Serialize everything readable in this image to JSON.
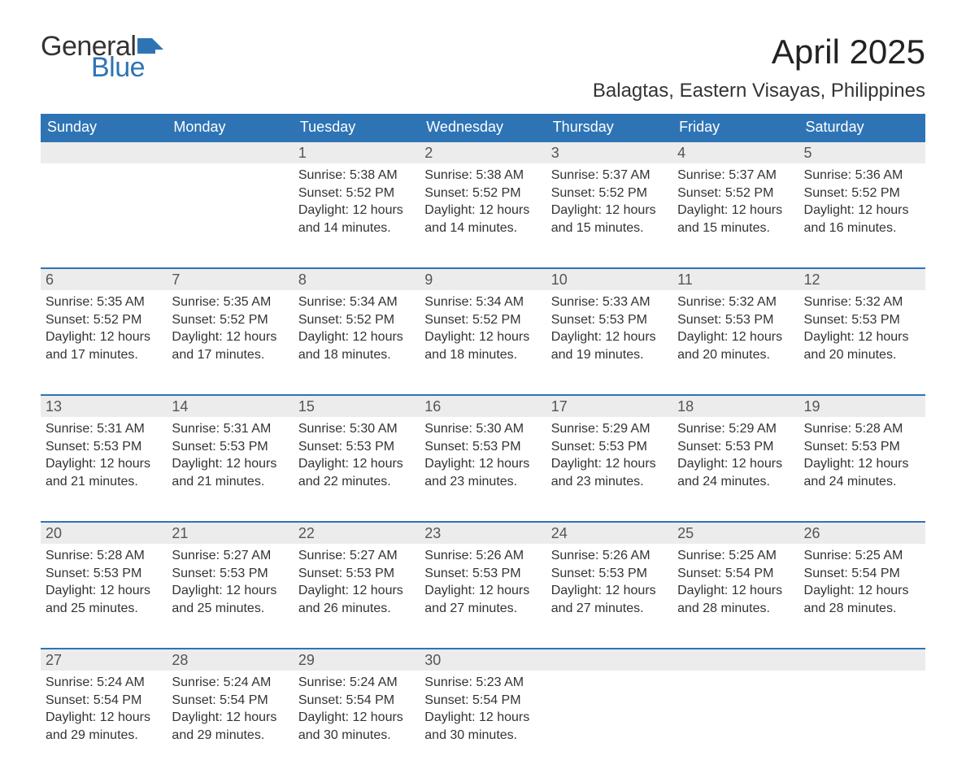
{
  "logo": {
    "text_general": "General",
    "text_blue": "Blue",
    "flag_color": "#2e74b5"
  },
  "title": {
    "month_year": "April 2025",
    "location": "Balagtas, Eastern Visayas, Philippines"
  },
  "colors": {
    "header_bg": "#2e74b5",
    "header_text": "#ffffff",
    "daynum_bg": "#ececec",
    "daynum_text": "#555555",
    "body_text": "#333333",
    "row_border": "#2e74b5",
    "page_bg": "#ffffff"
  },
  "typography": {
    "month_title_fontsize": 42,
    "location_fontsize": 24,
    "weekday_fontsize": 18,
    "daynum_fontsize": 18,
    "content_fontsize": 16,
    "font_family": "Arial"
  },
  "layout": {
    "columns": 7,
    "rows": 5,
    "first_day_column_index": 2,
    "days_in_month": 30
  },
  "weekdays": [
    "Sunday",
    "Monday",
    "Tuesday",
    "Wednesday",
    "Thursday",
    "Friday",
    "Saturday"
  ],
  "days": [
    {
      "n": 1,
      "sunrise": "5:38 AM",
      "sunset": "5:52 PM",
      "daylight": "12 hours and 14 minutes."
    },
    {
      "n": 2,
      "sunrise": "5:38 AM",
      "sunset": "5:52 PM",
      "daylight": "12 hours and 14 minutes."
    },
    {
      "n": 3,
      "sunrise": "5:37 AM",
      "sunset": "5:52 PM",
      "daylight": "12 hours and 15 minutes."
    },
    {
      "n": 4,
      "sunrise": "5:37 AM",
      "sunset": "5:52 PM",
      "daylight": "12 hours and 15 minutes."
    },
    {
      "n": 5,
      "sunrise": "5:36 AM",
      "sunset": "5:52 PM",
      "daylight": "12 hours and 16 minutes."
    },
    {
      "n": 6,
      "sunrise": "5:35 AM",
      "sunset": "5:52 PM",
      "daylight": "12 hours and 17 minutes."
    },
    {
      "n": 7,
      "sunrise": "5:35 AM",
      "sunset": "5:52 PM",
      "daylight": "12 hours and 17 minutes."
    },
    {
      "n": 8,
      "sunrise": "5:34 AM",
      "sunset": "5:52 PM",
      "daylight": "12 hours and 18 minutes."
    },
    {
      "n": 9,
      "sunrise": "5:34 AM",
      "sunset": "5:52 PM",
      "daylight": "12 hours and 18 minutes."
    },
    {
      "n": 10,
      "sunrise": "5:33 AM",
      "sunset": "5:53 PM",
      "daylight": "12 hours and 19 minutes."
    },
    {
      "n": 11,
      "sunrise": "5:32 AM",
      "sunset": "5:53 PM",
      "daylight": "12 hours and 20 minutes."
    },
    {
      "n": 12,
      "sunrise": "5:32 AM",
      "sunset": "5:53 PM",
      "daylight": "12 hours and 20 minutes."
    },
    {
      "n": 13,
      "sunrise": "5:31 AM",
      "sunset": "5:53 PM",
      "daylight": "12 hours and 21 minutes."
    },
    {
      "n": 14,
      "sunrise": "5:31 AM",
      "sunset": "5:53 PM",
      "daylight": "12 hours and 21 minutes."
    },
    {
      "n": 15,
      "sunrise": "5:30 AM",
      "sunset": "5:53 PM",
      "daylight": "12 hours and 22 minutes."
    },
    {
      "n": 16,
      "sunrise": "5:30 AM",
      "sunset": "5:53 PM",
      "daylight": "12 hours and 23 minutes."
    },
    {
      "n": 17,
      "sunrise": "5:29 AM",
      "sunset": "5:53 PM",
      "daylight": "12 hours and 23 minutes."
    },
    {
      "n": 18,
      "sunrise": "5:29 AM",
      "sunset": "5:53 PM",
      "daylight": "12 hours and 24 minutes."
    },
    {
      "n": 19,
      "sunrise": "5:28 AM",
      "sunset": "5:53 PM",
      "daylight": "12 hours and 24 minutes."
    },
    {
      "n": 20,
      "sunrise": "5:28 AM",
      "sunset": "5:53 PM",
      "daylight": "12 hours and 25 minutes."
    },
    {
      "n": 21,
      "sunrise": "5:27 AM",
      "sunset": "5:53 PM",
      "daylight": "12 hours and 25 minutes."
    },
    {
      "n": 22,
      "sunrise": "5:27 AM",
      "sunset": "5:53 PM",
      "daylight": "12 hours and 26 minutes."
    },
    {
      "n": 23,
      "sunrise": "5:26 AM",
      "sunset": "5:53 PM",
      "daylight": "12 hours and 27 minutes."
    },
    {
      "n": 24,
      "sunrise": "5:26 AM",
      "sunset": "5:53 PM",
      "daylight": "12 hours and 27 minutes."
    },
    {
      "n": 25,
      "sunrise": "5:25 AM",
      "sunset": "5:54 PM",
      "daylight": "12 hours and 28 minutes."
    },
    {
      "n": 26,
      "sunrise": "5:25 AM",
      "sunset": "5:54 PM",
      "daylight": "12 hours and 28 minutes."
    },
    {
      "n": 27,
      "sunrise": "5:24 AM",
      "sunset": "5:54 PM",
      "daylight": "12 hours and 29 minutes."
    },
    {
      "n": 28,
      "sunrise": "5:24 AM",
      "sunset": "5:54 PM",
      "daylight": "12 hours and 29 minutes."
    },
    {
      "n": 29,
      "sunrise": "5:24 AM",
      "sunset": "5:54 PM",
      "daylight": "12 hours and 30 minutes."
    },
    {
      "n": 30,
      "sunrise": "5:23 AM",
      "sunset": "5:54 PM",
      "daylight": "12 hours and 30 minutes."
    }
  ],
  "labels": {
    "sunrise_prefix": "Sunrise: ",
    "sunset_prefix": "Sunset: ",
    "daylight_prefix": "Daylight: "
  }
}
